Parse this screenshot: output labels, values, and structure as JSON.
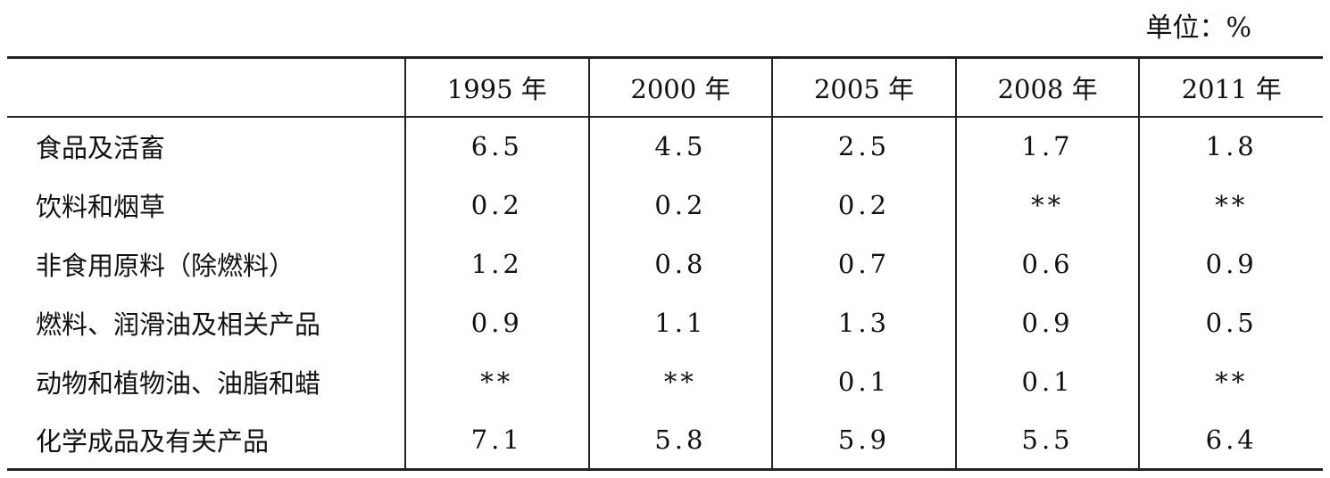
{
  "unit": "单位：%",
  "table": {
    "columns": [
      "1995 年",
      "2000 年",
      "2005 年",
      "2008 年",
      "2011 年"
    ],
    "rows": [
      {
        "label": "食品及活畜",
        "cells": [
          6.5,
          4.5,
          2.5,
          1.7,
          1.8
        ]
      },
      {
        "label": "饮料和烟草",
        "cells": [
          0.2,
          0.2,
          0.2,
          "**",
          "**"
        ]
      },
      {
        "label": "非食用原料（除燃料）",
        "cells": [
          1.2,
          0.8,
          0.7,
          0.6,
          0.9
        ]
      },
      {
        "label": "燃料、润滑油及相关产品",
        "cells": [
          0.9,
          1.1,
          1.3,
          0.9,
          0.5
        ]
      },
      {
        "label": "动物和植物油、油脂和蜡",
        "cells": [
          "**",
          "**",
          0.1,
          0.1,
          "**"
        ]
      },
      {
        "label": "化学成品及有关产品",
        "cells": [
          7.1,
          5.8,
          5.9,
          5.5,
          6.4
        ]
      }
    ]
  }
}
